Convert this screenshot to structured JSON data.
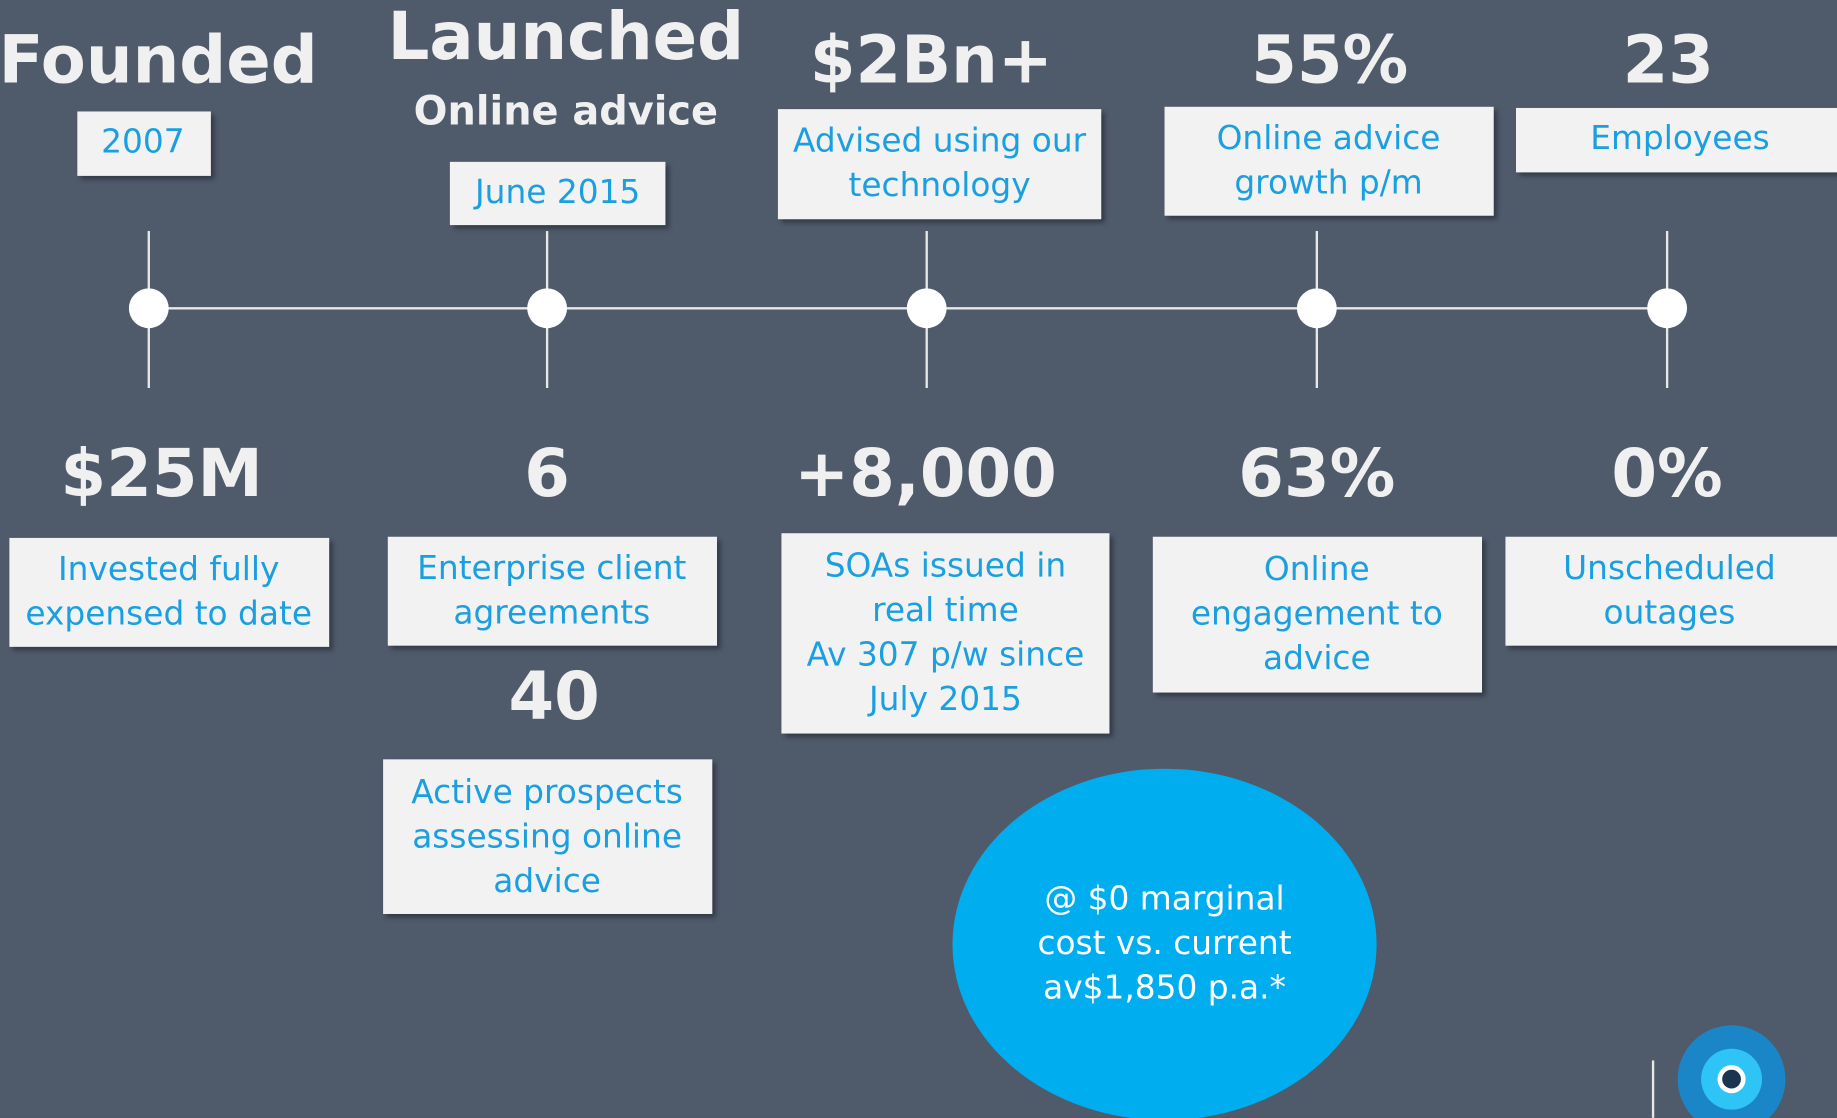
{
  "top": [
    {
      "heading": "Founded",
      "box": [
        "2007"
      ]
    },
    {
      "heading": "Launched",
      "subheading": "Online advice",
      "box": [
        "June 2015"
      ]
    },
    {
      "heading": "$2Bn+",
      "box": [
        "Advised using our",
        "technology"
      ]
    },
    {
      "heading": "55%",
      "box": [
        "Online advice",
        "growth p/m"
      ]
    },
    {
      "heading": "23",
      "box": [
        "Employees"
      ]
    }
  ],
  "bottom": [
    {
      "heading": "$25M",
      "box": [
        "Invested fully",
        "expensed to date"
      ]
    },
    {
      "heading": "6",
      "box": [
        "Enterprise client",
        "agreements"
      ],
      "extra_heading": "40",
      "extra_box": [
        "Active prospects",
        "assessing online",
        "advice"
      ]
    },
    {
      "heading": "+8,000",
      "box": [
        "SOAs issued in",
        "real time",
        "Av 307 p/w since",
        "July 2015"
      ]
    },
    {
      "heading": "63%",
      "box": [
        "Online",
        "engagement to",
        "advice"
      ]
    },
    {
      "heading": "0%",
      "box": [
        "Unscheduled",
        "outages"
      ]
    }
  ],
  "callout": [
    "@ $0 marginal",
    "cost vs. current",
    "av$1,850 p.a.*"
  ]
}
